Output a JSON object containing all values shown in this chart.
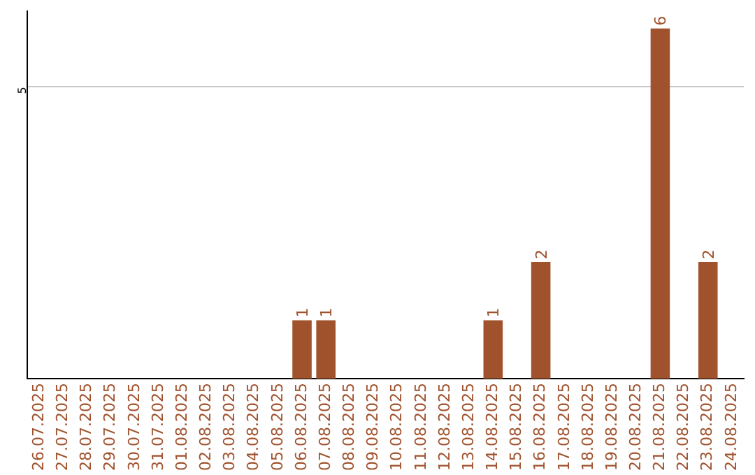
{
  "chart_data": {
    "type": "bar",
    "categories": [
      "26.07.2025",
      "27.07.2025",
      "28.07.2025",
      "29.07.2025",
      "30.07.2025",
      "31.07.2025",
      "01.08.2025",
      "02.08.2025",
      "03.08.2025",
      "04.08.2025",
      "05.08.2025",
      "06.08.2025",
      "07.08.2025",
      "08.08.2025",
      "09.08.2025",
      "10.08.2025",
      "11.08.2025",
      "12.08.2025",
      "13.08.2025",
      "14.08.2025",
      "15.08.2025",
      "16.08.2025",
      "17.08.2025",
      "18.08.2025",
      "19.08.2025",
      "20.08.2025",
      "21.08.2025",
      "22.08.2025",
      "23.08.2025",
      "24.08.2025"
    ],
    "values": [
      null,
      null,
      null,
      null,
      null,
      null,
      null,
      null,
      null,
      null,
      null,
      1,
      1,
      null,
      null,
      null,
      null,
      null,
      null,
      1,
      null,
      2,
      null,
      null,
      null,
      null,
      6,
      null,
      2,
      null
    ],
    "color": "#a0522d",
    "ylim": [
      0,
      6.3
    ],
    "yticks": [
      5
    ],
    "grid": "y",
    "data_labels": true,
    "legend": false
  }
}
